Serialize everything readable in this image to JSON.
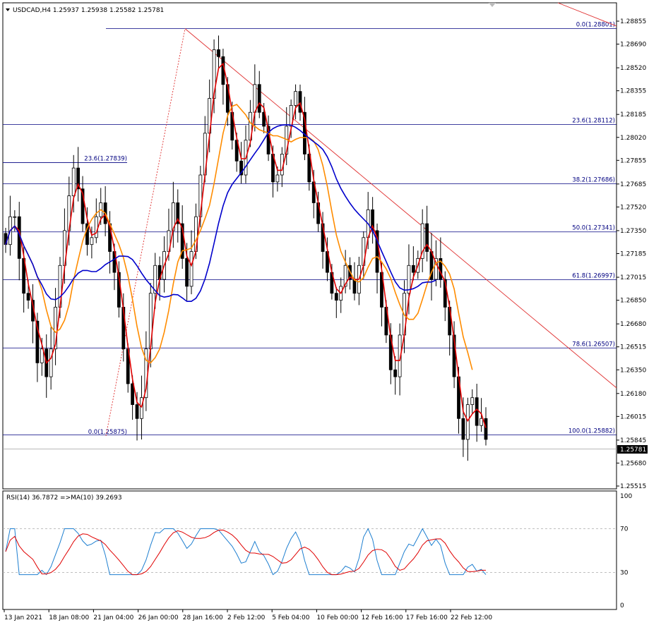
{
  "chart_data": [
    {
      "type": "candlestick",
      "header": "USDCAD,H4  1.25937 1.25938 1.25582 1.25781",
      "symbol": "USDCAD,H4",
      "ohlc_last": [
        1.25937,
        1.25938,
        1.25582,
        1.25781
      ],
      "bid_label": "1.25781",
      "y_range": [
        1.25515,
        1.28995
      ],
      "y_ticks": [
        "1.28855",
        "1.28690",
        "1.28520",
        "1.28355",
        "1.28185",
        "1.28020",
        "1.27855",
        "1.27685",
        "1.27520",
        "1.27350",
        "1.27185",
        "1.27015",
        "1.26850",
        "1.26680",
        "1.26515",
        "1.26350",
        "1.26180",
        "1.26015",
        "1.25845",
        "1.25680",
        "1.25515"
      ],
      "x_ticks": [
        "13 Jan 2021",
        "18 Jan 08:00",
        "21 Jan 04:00",
        "26 Jan 00:00",
        "28 Jan 16:00",
        "2 Feb 12:00",
        "5 Feb 04:00",
        "10 Feb 00:00",
        "12 Feb 16:00",
        "17 Feb 16:00",
        "22 Feb 12:00"
      ],
      "candles_close": [
        1.2725,
        1.2745,
        1.2745,
        1.2715,
        1.269,
        1.2685,
        1.267,
        1.264,
        1.265,
        1.263,
        1.265,
        1.268,
        1.271,
        1.2735,
        1.276,
        1.278,
        1.2765,
        1.274,
        1.2725,
        1.273,
        1.2745,
        1.2755,
        1.274,
        1.272,
        1.2705,
        1.268,
        1.265,
        1.2625,
        1.261,
        1.26,
        1.2615,
        1.265,
        1.269,
        1.271,
        1.27,
        1.272,
        1.2735,
        1.2755,
        1.274,
        1.2715,
        1.2695,
        1.272,
        1.2745,
        1.2775,
        1.2805,
        1.283,
        1.2865,
        1.286,
        1.284,
        1.282,
        1.28,
        1.2785,
        1.2775,
        1.28,
        1.282,
        1.284,
        1.282,
        1.281,
        1.279,
        1.277,
        1.2775,
        1.279,
        1.281,
        1.2825,
        1.2835,
        1.282,
        1.279,
        1.277,
        1.2755,
        1.274,
        1.272,
        1.2705,
        1.269,
        1.2685,
        1.2695,
        1.271,
        1.27,
        1.269,
        1.271,
        1.273,
        1.275,
        1.2735,
        1.2705,
        1.268,
        1.266,
        1.2635,
        1.263,
        1.266,
        1.269,
        1.271,
        1.2705,
        1.2715,
        1.274,
        1.272,
        1.27,
        1.2715,
        1.27,
        1.268,
        1.266,
        1.263,
        1.26,
        1.2585,
        1.261,
        1.2615,
        1.2595,
        1.26,
        1.2585
      ],
      "fib_sets": [
        {
          "levels": [
            {
              "label": "0.0(1.28801)",
              "value": 1.28801
            },
            {
              "label": "23.6(1.28112)",
              "value": 1.28112
            },
            {
              "label": "38.2(1.27686)",
              "value": 1.27686
            },
            {
              "label": "50.0(1.27341)",
              "value": 1.27341
            },
            {
              "label": "61.8(1.26997)",
              "value": 1.26997
            },
            {
              "label": "78.6(1.26507)",
              "value": 1.26507
            },
            {
              "label": "100.0(1.25882)",
              "value": 1.25882
            }
          ]
        },
        {
          "levels": [
            {
              "label": "23.6(1.27839)",
              "value": 1.27839
            },
            {
              "label": "0.0(1.25875)",
              "value": 1.25875
            }
          ]
        }
      ],
      "moving_averages": [
        {
          "color": "#e00000"
        },
        {
          "color": "#ff8c00"
        },
        {
          "color": "#0000cc"
        }
      ]
    },
    {
      "type": "line",
      "header": "RSI(14) 36.7872  =>MA(10) 39.2693",
      "y_range": [
        0,
        100
      ],
      "y_ticks": [
        "100",
        "70",
        "30",
        "0"
      ],
      "series": [
        {
          "name": "RSI(14)",
          "value": 36.7872,
          "color": "#1e7fd0"
        },
        {
          "name": "MA(10)",
          "value": 39.2693,
          "color": "#e00000"
        }
      ]
    }
  ]
}
